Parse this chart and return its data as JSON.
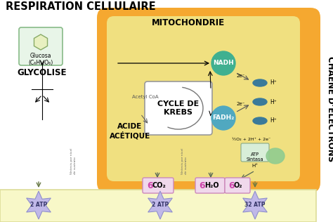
{
  "title": "RESPIRATION CELLULAIRE",
  "side_label": "CHAÊNE D’ÉLECTRONS",
  "bg_color": "#ffffff",
  "mito_outer_color": "#f5a830",
  "mito_inner_color": "#f0e080",
  "bottom_bar_color": "#f8f8c8",
  "glycolise_label": "GLYCOLISE",
  "glucose_label": "Glucosa\n(C₆H₁₂O₆)",
  "krebs_label": "CYCLE DE\nKREBS",
  "nadh_label": "NADH",
  "fadh2_label": "FADH₂",
  "acide_label": "ACIDE\nACÉTIQUE",
  "acetyl_label": "Acetyl CoA",
  "mito_label": "MITOCHONDRIE",
  "co2_label": "6",
  "co2_sub": "CO₂",
  "h2o_label": "6",
  "h2o_sub": "H₂O",
  "o2_label": "6",
  "o2_sub": "O₂",
  "atp1_label": "2 ATP",
  "atp2_label": "2 ATP",
  "atp3_label": "32 ATP",
  "atp_sintasa": "ATP\nSintasa",
  "star_color": "#c0b8e8",
  "nadh_color": "#40b090",
  "fadh2_color": "#50a8c0",
  "protein_color": "#90cc90",
  "ellipse_color": "#3a7a9a",
  "label_color": "#cc44aa",
  "synth_text": "Síntesis por nivel\nde sustrato"
}
